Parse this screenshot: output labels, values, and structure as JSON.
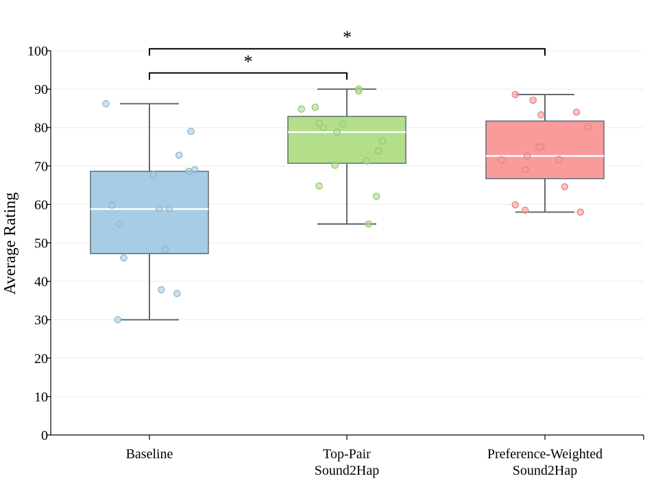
{
  "chart_data": {
    "type": "box",
    "title": "",
    "xlabel": "",
    "ylabel": "Average Rating",
    "ylim": [
      0,
      100
    ],
    "yticks": [
      0,
      10,
      20,
      30,
      40,
      50,
      60,
      70,
      80,
      90,
      100
    ],
    "grid": true,
    "categories": [
      {
        "lines": [
          "Baseline"
        ]
      },
      {
        "lines": [
          "Top-Pair",
          "Sound2Hap"
        ]
      },
      {
        "lines": [
          "Preference-Weighted",
          "Sound2Hap"
        ]
      }
    ],
    "series": [
      {
        "name": "Baseline",
        "color": "#a6cde3",
        "edge": "#8fb4cc",
        "stats": {
          "whisker_low": 30,
          "q1": 47.2,
          "median": 58.8,
          "q3": 68.6,
          "whisker_high": 86.2
        },
        "points": [
          86.2,
          79.0,
          72.8,
          69.0,
          68.6,
          67.7,
          59.8,
          58.8,
          58.8,
          54.9,
          48.3,
          46.1,
          37.8,
          36.8,
          30.0
        ],
        "jitter": [
          -0.22,
          0.21,
          0.15,
          0.23,
          0.2,
          0.02,
          -0.19,
          0.05,
          0.1,
          -0.15,
          0.08,
          -0.13,
          0.06,
          0.14,
          -0.16
        ]
      },
      {
        "name": "Top-Pair Sound2Hap",
        "color": "#b3df8a",
        "edge": "#94c66c",
        "stats": {
          "whisker_low": 54.9,
          "q1": 70.7,
          "median": 78.8,
          "q3": 82.9,
          "whisker_high": 90.0
        },
        "points": [
          90.0,
          89.5,
          85.3,
          84.8,
          81.1,
          81.0,
          80.0,
          78.8,
          76.5,
          73.9,
          71.3,
          70.2,
          64.8,
          62.1,
          54.9
        ],
        "jitter": [
          0.06,
          0.06,
          -0.16,
          -0.23,
          -0.14,
          -0.02,
          -0.12,
          -0.05,
          0.18,
          0.16,
          0.1,
          -0.06,
          -0.14,
          0.15,
          0.11
        ]
      },
      {
        "name": "Preference-Weighted Sound2Hap",
        "color": "#f99b9b",
        "edge": "#e08484",
        "stats": {
          "whisker_low": 58.0,
          "q1": 66.7,
          "median": 72.6,
          "q3": 81.7,
          "whisker_high": 88.6
        },
        "points": [
          88.6,
          87.1,
          84.0,
          83.3,
          80.2,
          75.0,
          74.8,
          72.6,
          71.7,
          71.6,
          69.0,
          64.6,
          59.9,
          58.5,
          58.0
        ],
        "jitter": [
          -0.15,
          -0.06,
          0.16,
          -0.02,
          0.22,
          -0.02,
          -0.03,
          -0.09,
          0.07,
          -0.22,
          -0.1,
          0.1,
          -0.15,
          -0.1,
          0.18
        ]
      }
    ],
    "significance": [
      {
        "from": 0,
        "to": 2,
        "label": "*"
      },
      {
        "from": 0,
        "to": 1,
        "label": "*"
      }
    ]
  }
}
